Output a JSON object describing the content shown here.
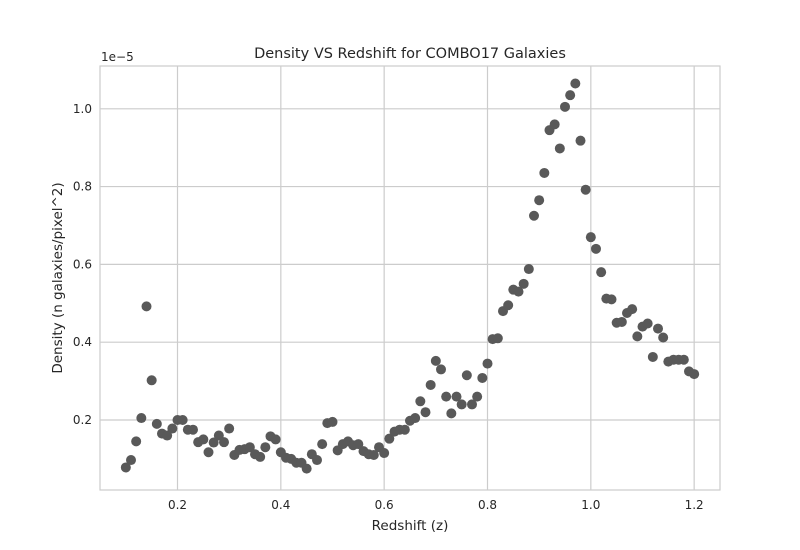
{
  "chart_data": {
    "type": "scatter",
    "title": "Density VS Redshift for COMBO17 Galaxies",
    "xlabel": "Redshift (z)",
    "ylabel": "Density (n galaxies/pixel^2)",
    "y_offset_label": "1e−5",
    "xlim": [
      0.05,
      1.25
    ],
    "ylim": [
      0.2,
      11.1
    ],
    "xticks": [
      0.2,
      0.4,
      0.6,
      0.8,
      1.0,
      1.2
    ],
    "xtick_labels": [
      "0.2",
      "0.4",
      "0.6",
      "0.8",
      "1.0",
      "1.2"
    ],
    "yticks": [
      2,
      4,
      6,
      8,
      10
    ],
    "ytick_labels": [
      "0.2",
      "0.4",
      "0.6",
      "0.8",
      "1.0"
    ],
    "grid": true,
    "marker_color": "#595959",
    "grid_color": "#cccccc",
    "series": [
      {
        "x": [
          0.1,
          0.11,
          0.12,
          0.13,
          0.14,
          0.15,
          0.16,
          0.17,
          0.18,
          0.19,
          0.2,
          0.21,
          0.22,
          0.23,
          0.24,
          0.25,
          0.26,
          0.27,
          0.28,
          0.29,
          0.3,
          0.31,
          0.32,
          0.33,
          0.34,
          0.35,
          0.36,
          0.37,
          0.38,
          0.39,
          0.4,
          0.41,
          0.42,
          0.43,
          0.44,
          0.45,
          0.46,
          0.47,
          0.48,
          0.49,
          0.5,
          0.51,
          0.52,
          0.53,
          0.54,
          0.55,
          0.56,
          0.57,
          0.58,
          0.59,
          0.6,
          0.61,
          0.62,
          0.63,
          0.64,
          0.65,
          0.66,
          0.67,
          0.68,
          0.69,
          0.7,
          0.71,
          0.72,
          0.73,
          0.74,
          0.75,
          0.76,
          0.77,
          0.78,
          0.79,
          0.8,
          0.81,
          0.82,
          0.83,
          0.84,
          0.85,
          0.86,
          0.87,
          0.88,
          0.89,
          0.9,
          0.91,
          0.92,
          0.93,
          0.94,
          0.95,
          0.96,
          0.97,
          0.98,
          0.99,
          1.0,
          1.01,
          1.02,
          1.03,
          1.04,
          1.05,
          1.06,
          1.07,
          1.08,
          1.09,
          1.1,
          1.11,
          1.12,
          1.13,
          1.14,
          1.15,
          1.16,
          1.17,
          1.18,
          1.19,
          1.2
        ],
        "y": [
          0.78,
          0.97,
          1.45,
          2.05,
          4.92,
          3.02,
          1.9,
          1.65,
          1.6,
          1.78,
          2.0,
          2.0,
          1.75,
          1.75,
          1.43,
          1.5,
          1.17,
          1.42,
          1.6,
          1.43,
          1.78,
          1.1,
          1.23,
          1.25,
          1.3,
          1.12,
          1.05,
          1.3,
          1.58,
          1.5,
          1.17,
          1.03,
          1.0,
          0.9,
          0.9,
          0.75,
          1.12,
          0.97,
          1.38,
          1.92,
          1.95,
          1.22,
          1.38,
          1.45,
          1.35,
          1.38,
          1.2,
          1.12,
          1.1,
          1.3,
          1.15,
          1.52,
          1.7,
          1.75,
          1.75,
          1.98,
          2.05,
          2.48,
          2.2,
          2.9,
          3.52,
          3.3,
          2.6,
          2.17,
          2.6,
          2.4,
          3.15,
          2.4,
          2.6,
          3.08,
          3.45,
          4.08,
          4.1,
          4.8,
          4.95,
          5.35,
          5.3,
          5.5,
          5.88,
          7.25,
          7.65,
          8.35,
          9.45,
          9.6,
          8.98,
          10.05,
          10.35,
          10.65,
          9.18,
          7.92,
          6.7,
          6.4,
          5.8,
          5.12,
          5.1,
          4.5,
          4.52,
          4.75,
          4.85,
          4.15,
          4.4,
          4.48,
          3.62,
          4.35,
          4.12,
          3.5,
          3.55,
          3.55,
          3.55,
          3.25,
          3.18
        ]
      }
    ]
  }
}
